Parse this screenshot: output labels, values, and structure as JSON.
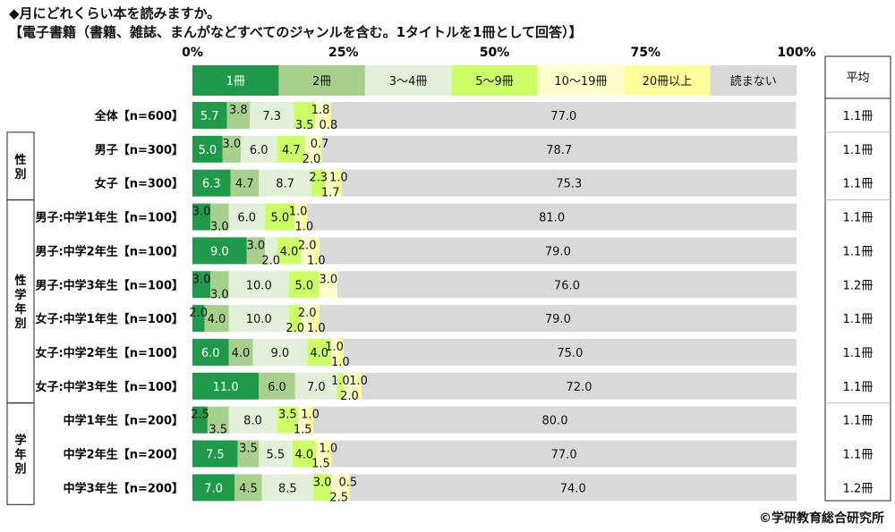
{
  "title": "◆月にどれくらい本を読みますか。",
  "subtitle": "【電子書籍（書籍、雑誌、まんがなどすべてのジャンルを含む。1タイトルを1冊として回答）】",
  "credit": "©学研教育総合研究所",
  "chart_data": {
    "type": "bar",
    "orientation": "horizontal",
    "stacked": true,
    "percent_axis_ticks": [
      "0%",
      "25%",
      "50%",
      "75%",
      "100%"
    ],
    "xlim": [
      0,
      100
    ],
    "legend_placement": "top",
    "avg_header": "平均",
    "series": [
      {
        "name": "1冊",
        "color": "#1e9a4a"
      },
      {
        "name": "2冊",
        "color": "#a8d08d"
      },
      {
        "name": "3～4冊",
        "color": "#e2efd9"
      },
      {
        "name": "5～9冊",
        "color": "#ccff66"
      },
      {
        "name": "10～19冊",
        "color": "#ffffcc"
      },
      {
        "name": "20冊以上",
        "color": "#ffff99"
      },
      {
        "name": "読まない",
        "color": "#d9d9d9"
      }
    ],
    "groups": [
      {
        "label": "",
        "rows": [
          0
        ]
      },
      {
        "label": "性別",
        "rows": [
          1,
          2
        ]
      },
      {
        "label": "性学年別",
        "rows": [
          3,
          4,
          5,
          6,
          7,
          8
        ]
      },
      {
        "label": "学年別",
        "rows": [
          9,
          10,
          11
        ]
      }
    ],
    "rows": [
      {
        "label": "全体【n=600】",
        "values": [
          5.7,
          3.8,
          7.3,
          3.5,
          1.8,
          0.8,
          77.0
        ],
        "labels": [
          "5.7",
          "3.8",
          "7.3",
          "3.5",
          "1.8",
          "0.8",
          "77.0"
        ],
        "avg": "1.1冊"
      },
      {
        "label": "男子【n=300】",
        "values": [
          5.0,
          3.0,
          6.0,
          4.7,
          2.0,
          0.7,
          78.7
        ],
        "labels": [
          "5.0",
          "3.0",
          "6.0",
          "4.7",
          "2.0",
          "0.7",
          "78.7"
        ],
        "avg": "1.1冊"
      },
      {
        "label": "女子【n=300】",
        "values": [
          6.3,
          4.7,
          8.7,
          2.3,
          1.7,
          1.0,
          75.3
        ],
        "labels": [
          "6.3",
          "4.7",
          "8.7",
          "2.3",
          "1.7",
          "1.0",
          "75.3"
        ],
        "avg": "1.1冊"
      },
      {
        "label": "男子:中学1年生【n=100】",
        "values": [
          3.0,
          3.0,
          6.0,
          5.0,
          1.0,
          1.0,
          81.0
        ],
        "labels": [
          "3.0",
          "3.0",
          "6.0",
          "5.0",
          "1.0",
          "1.0",
          "81.0"
        ],
        "avg": "1.1冊"
      },
      {
        "label": "男子:中学2年生【n=100】",
        "values": [
          9.0,
          3.0,
          2.0,
          4.0,
          2.0,
          1.0,
          79.0
        ],
        "labels": [
          "9.0",
          "3.0",
          "2.0",
          "4.0",
          "2.0",
          "1.0",
          "79.0"
        ],
        "avg": "1.1冊"
      },
      {
        "label": "男子:中学3年生【n=100】",
        "values": [
          3.0,
          3.0,
          10.0,
          5.0,
          3.0,
          0,
          76.0
        ],
        "labels": [
          "3.0",
          "3.0",
          "10.0",
          "5.0",
          "3.0",
          "",
          "76.0"
        ],
        "avg": "1.2冊"
      },
      {
        "label": "女子:中学1年生【n=100】",
        "values": [
          2.0,
          4.0,
          10.0,
          2.0,
          2.0,
          1.0,
          79.0
        ],
        "labels": [
          "2.0",
          "4.0",
          "10.0",
          "2.0",
          "2.0",
          "1.0",
          "79.0"
        ],
        "avg": "1.1冊"
      },
      {
        "label": "女子:中学2年生【n=100】",
        "values": [
          6.0,
          4.0,
          9.0,
          4.0,
          1.0,
          1.0,
          75.0
        ],
        "labels": [
          "6.0",
          "4.0",
          "9.0",
          "4.0",
          "1.0",
          "1.0",
          "75.0"
        ],
        "avg": "1.1冊"
      },
      {
        "label": "女子:中学3年生【n=100】",
        "values": [
          11.0,
          6.0,
          7.0,
          1.0,
          2.0,
          1.0,
          72.0
        ],
        "labels": [
          "11.0",
          "6.0",
          "7.0",
          "1.0",
          "2.0",
          "1.0",
          "72.0"
        ],
        "avg": "1.1冊"
      },
      {
        "label": "中学1年生【n=200】",
        "values": [
          2.5,
          3.5,
          8.0,
          3.5,
          1.5,
          1.0,
          80.0
        ],
        "labels": [
          "2.5",
          "3.5",
          "8.0",
          "3.5",
          "1.5",
          "1.0",
          "80.0"
        ],
        "avg": "1.1冊"
      },
      {
        "label": "中学2年生【n=200】",
        "values": [
          7.5,
          3.5,
          5.5,
          4.0,
          1.5,
          1.0,
          77.0
        ],
        "labels": [
          "7.5",
          "3.5",
          "5.5",
          "4.0",
          "1.5",
          "1.0",
          "77.0"
        ],
        "avg": "1.1冊"
      },
      {
        "label": "中学3年生【n=200】",
        "values": [
          7.0,
          4.5,
          8.5,
          3.0,
          2.5,
          0.5,
          74.0
        ],
        "labels": [
          "7.0",
          "4.5",
          "8.5",
          "3.0",
          "2.5",
          "0.5",
          "74.0"
        ],
        "avg": "1.2冊"
      }
    ]
  }
}
